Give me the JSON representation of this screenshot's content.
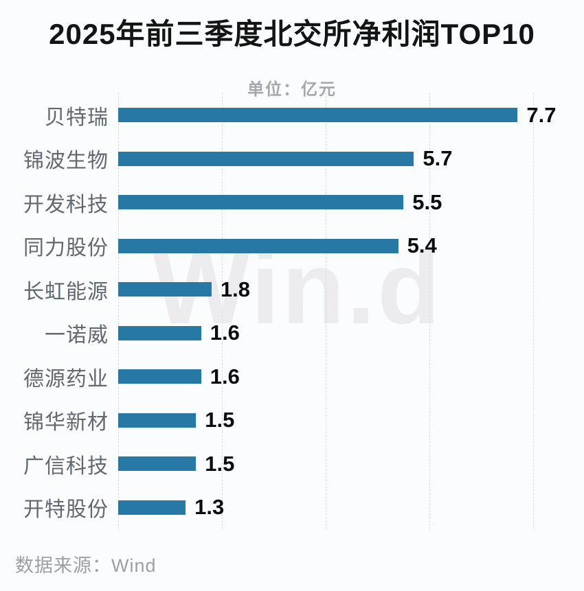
{
  "title": "2025年前三季度北交所净利润TOP10",
  "unit_label": "单位：亿元",
  "source": "数据来源：Wind",
  "watermark": "Win.d",
  "colors": {
    "bar": "#2878a5",
    "background": "#fbfcfd",
    "category_label": "#62686f",
    "value_label": "#0c0c0c",
    "gridline": "#d9dbde"
  },
  "chart_data": {
    "type": "bar",
    "orientation": "horizontal",
    "title": "2025年前三季度北交所净利润TOP10",
    "subtitle": "单位：亿元",
    "xlabel": "",
    "ylabel": "",
    "xlim": [
      0,
      8
    ],
    "xticks": [
      0,
      2,
      4,
      6,
      8
    ],
    "grid": "vertical-dashed",
    "legend": "none",
    "categories": [
      "贝特瑞",
      "锦波生物",
      "开发科技",
      "同力股份",
      "长虹能源",
      "一诺威",
      "德源药业",
      "锦华新材",
      "广信科技",
      "开特股份"
    ],
    "values": [
      7.7,
      5.7,
      5.5,
      5.4,
      1.8,
      1.6,
      1.6,
      1.5,
      1.5,
      1.3
    ],
    "value_labels": [
      "7.7",
      "5.7",
      "5.5",
      "5.4",
      "1.8",
      "1.6",
      "1.6",
      "1.5",
      "1.5",
      "1.3"
    ]
  }
}
